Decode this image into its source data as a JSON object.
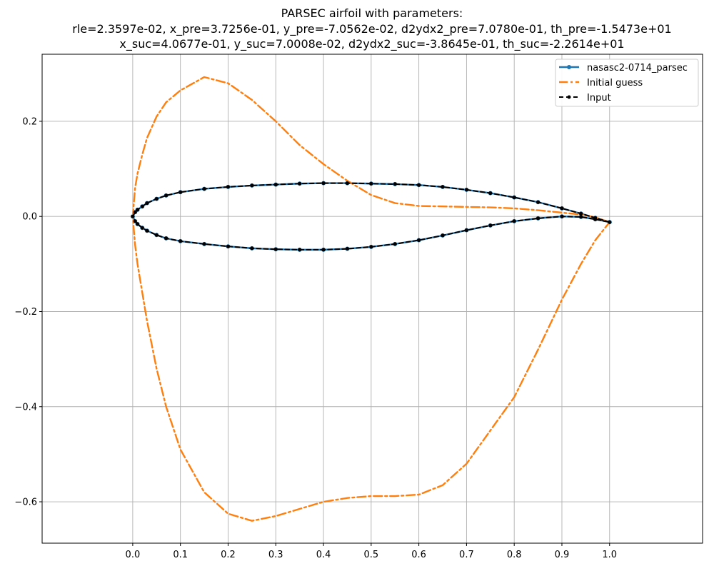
{
  "chart_data": {
    "type": "line",
    "title": [
      "PARSEC airfoil with parameters:",
      "rle=2.3597e-02, x_pre=3.7256e-01, y_pre=-7.0562e-02, d2ydx2_pre=7.0780e-01, th_pre=-1.5473e+01",
      "x_suc=4.0677e-01, y_suc=7.0008e-02, d2ydx2_suc=-3.8645e-01, th_suc=-2.2614e+01"
    ],
    "xlabel": "",
    "ylabel": "",
    "xlim": [
      -0.19,
      1.195
    ],
    "ylim": [
      -0.687,
      0.341
    ],
    "xticks": [
      0.0,
      0.1,
      0.2,
      0.3,
      0.4,
      0.5,
      0.6,
      0.7,
      0.8,
      0.9,
      1.0
    ],
    "xtick_labels": [
      "0.0",
      "0.1",
      "0.2",
      "0.3",
      "0.4",
      "0.5",
      "0.6",
      "0.7",
      "0.8",
      "0.9",
      "1.0"
    ],
    "yticks": [
      -0.6,
      -0.4,
      -0.2,
      0.0,
      0.2
    ],
    "ytick_labels": [
      "−0.6",
      "−0.4",
      "−0.2",
      "0.0",
      "0.2"
    ],
    "grid": true,
    "legend_position": "top-right",
    "series": [
      {
        "name": "nasasc2-0714_parsec",
        "color": "#1f77b4",
        "style": "solid-dots",
        "x": [
          1.0,
          0.97,
          0.94,
          0.9,
          0.85,
          0.8,
          0.75,
          0.7,
          0.65,
          0.6,
          0.55,
          0.5,
          0.45,
          0.4,
          0.35,
          0.3,
          0.25,
          0.2,
          0.15,
          0.1,
          0.07,
          0.05,
          0.03,
          0.02,
          0.01,
          0.005,
          0.0,
          0.005,
          0.01,
          0.02,
          0.03,
          0.05,
          0.07,
          0.1,
          0.15,
          0.2,
          0.25,
          0.3,
          0.35,
          0.4,
          0.45,
          0.5,
          0.55,
          0.6,
          0.65,
          0.7,
          0.75,
          0.8,
          0.85,
          0.9,
          0.94,
          0.97,
          1.0
        ],
        "y": [
          -0.012,
          -0.003,
          0.006,
          0.017,
          0.03,
          0.04,
          0.049,
          0.056,
          0.062,
          0.066,
          0.068,
          0.069,
          0.07,
          0.07,
          0.069,
          0.067,
          0.065,
          0.062,
          0.058,
          0.051,
          0.044,
          0.037,
          0.028,
          0.021,
          0.014,
          0.009,
          0.0,
          -0.01,
          -0.016,
          -0.024,
          -0.03,
          -0.039,
          -0.046,
          -0.052,
          -0.058,
          -0.063,
          -0.067,
          -0.069,
          -0.07,
          -0.07,
          -0.068,
          -0.064,
          -0.058,
          -0.05,
          -0.04,
          -0.029,
          -0.019,
          -0.01,
          -0.004,
          0.0,
          -0.001,
          -0.006,
          -0.012
        ]
      },
      {
        "name": "Initial guess",
        "color": "#ff7f0e",
        "style": "dashdot",
        "x": [
          1.0,
          0.97,
          0.94,
          0.9,
          0.85,
          0.8,
          0.75,
          0.7,
          0.65,
          0.6,
          0.55,
          0.5,
          0.45,
          0.4,
          0.35,
          0.3,
          0.25,
          0.2,
          0.15,
          0.1,
          0.07,
          0.05,
          0.03,
          0.02,
          0.01,
          0.005,
          0.0,
          0.005,
          0.01,
          0.02,
          0.03,
          0.05,
          0.07,
          0.1,
          0.15,
          0.2,
          0.25,
          0.3,
          0.35,
          0.4,
          0.45,
          0.5,
          0.55,
          0.6,
          0.65,
          0.7,
          0.75,
          0.8,
          0.85,
          0.9,
          0.94,
          0.97,
          1.0
        ],
        "y": [
          -0.012,
          -0.002,
          0.004,
          0.008,
          0.013,
          0.017,
          0.019,
          0.02,
          0.021,
          0.022,
          0.028,
          0.045,
          0.075,
          0.11,
          0.15,
          0.2,
          0.245,
          0.28,
          0.293,
          0.265,
          0.24,
          0.21,
          0.165,
          0.13,
          0.09,
          0.06,
          0.0,
          -0.06,
          -0.1,
          -0.16,
          -0.22,
          -0.32,
          -0.4,
          -0.49,
          -0.58,
          -0.625,
          -0.64,
          -0.63,
          -0.615,
          -0.6,
          -0.592,
          -0.588,
          -0.588,
          -0.585,
          -0.565,
          -0.52,
          -0.45,
          -0.38,
          -0.28,
          -0.175,
          -0.1,
          -0.05,
          -0.012
        ]
      },
      {
        "name": "Input",
        "color": "#000000",
        "style": "dashed-dots",
        "x": [
          1.0,
          0.97,
          0.94,
          0.9,
          0.85,
          0.8,
          0.75,
          0.7,
          0.65,
          0.6,
          0.55,
          0.5,
          0.45,
          0.4,
          0.35,
          0.3,
          0.25,
          0.2,
          0.15,
          0.1,
          0.07,
          0.05,
          0.03,
          0.02,
          0.01,
          0.005,
          0.0,
          0.005,
          0.01,
          0.02,
          0.03,
          0.05,
          0.07,
          0.1,
          0.15,
          0.2,
          0.25,
          0.3,
          0.35,
          0.4,
          0.45,
          0.5,
          0.55,
          0.6,
          0.65,
          0.7,
          0.75,
          0.8,
          0.85,
          0.9,
          0.94,
          0.97,
          1.0
        ],
        "y": [
          -0.012,
          -0.003,
          0.006,
          0.017,
          0.03,
          0.04,
          0.049,
          0.056,
          0.062,
          0.066,
          0.068,
          0.069,
          0.07,
          0.07,
          0.069,
          0.067,
          0.065,
          0.062,
          0.058,
          0.051,
          0.044,
          0.037,
          0.028,
          0.021,
          0.014,
          0.009,
          0.0,
          -0.01,
          -0.016,
          -0.024,
          -0.03,
          -0.039,
          -0.046,
          -0.052,
          -0.058,
          -0.063,
          -0.067,
          -0.069,
          -0.07,
          -0.07,
          -0.068,
          -0.064,
          -0.058,
          -0.05,
          -0.04,
          -0.029,
          -0.019,
          -0.01,
          -0.004,
          0.0,
          -0.001,
          -0.006,
          -0.012
        ]
      }
    ]
  }
}
